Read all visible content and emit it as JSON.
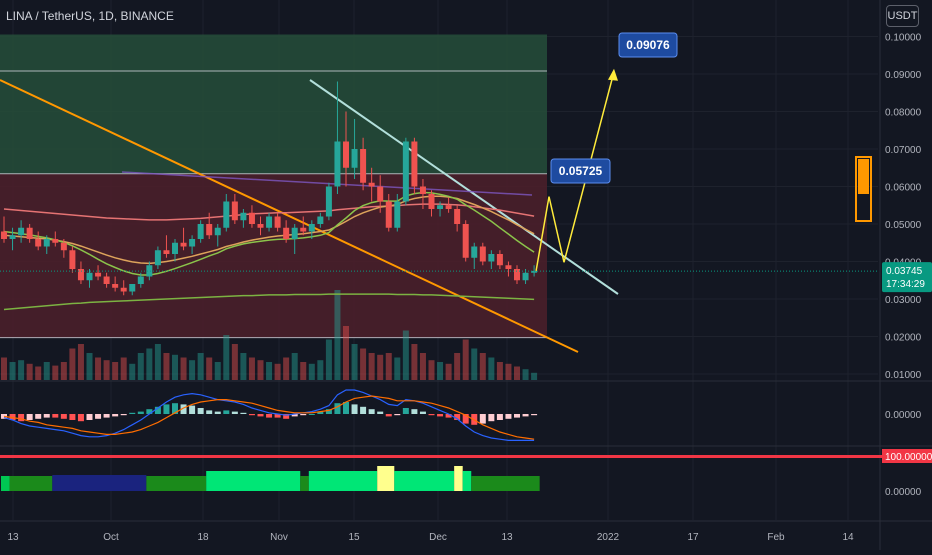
{
  "header": {
    "title": "LINA / TetherUS, 1D, BINANCE",
    "currency": "USDT"
  },
  "colors": {
    "background": "#131722",
    "up": "#26a69a",
    "down": "#ef5350",
    "green_zone": "#264d3a",
    "red_zone": "#4a1f2a",
    "trendline_white": "#b2dfdb",
    "trendline_orange": "#ff9800",
    "projection": "#ffeb3b",
    "label_bg": "#1e4ba0",
    "price_tag": "#089981",
    "rsi_line": "#f23645"
  },
  "chart_data": {
    "type": "candlestick",
    "symbol": "LINA / TetherUS",
    "interval": "1D",
    "exchange": "BINANCE",
    "y_axis": {
      "ticks": [
        "0.10000",
        "0.09000",
        "0.08000",
        "0.07000",
        "0.06000",
        "0.05000",
        "0.04000",
        "0.03000",
        "0.02000",
        "0.01000"
      ],
      "range": [
        0.01,
        0.1
      ]
    },
    "x_axis": {
      "ticks": [
        "13",
        "Oct",
        "18",
        "Nov",
        "15",
        "Dec",
        "13",
        "2022",
        "17",
        "Feb",
        "14"
      ]
    },
    "last_price": "0.03745",
    "countdown": "17:34:29",
    "annotations": [
      {
        "label": "0.09076",
        "value": 0.09076
      },
      {
        "label": "0.05725",
        "value": 0.05725
      }
    ],
    "zones": [
      {
        "name": "green-target-zone",
        "top": 0.1,
        "bottom": 0.0634
      },
      {
        "name": "red-range-zone",
        "top": 0.0634,
        "bottom": 0.0197
      }
    ],
    "levels": [
      0.0908,
      0.0634,
      0.0197
    ],
    "ohlc": [
      [
        0.048,
        0.052,
        0.045,
        0.046
      ],
      [
        0.046,
        0.049,
        0.043,
        0.047
      ],
      [
        0.047,
        0.051,
        0.045,
        0.049
      ],
      [
        0.049,
        0.05,
        0.045,
        0.046
      ],
      [
        0.046,
        0.048,
        0.043,
        0.044
      ],
      [
        0.044,
        0.047,
        0.042,
        0.046
      ],
      [
        0.046,
        0.048,
        0.044,
        0.045
      ],
      [
        0.045,
        0.046,
        0.041,
        0.043
      ],
      [
        0.043,
        0.044,
        0.037,
        0.038
      ],
      [
        0.038,
        0.04,
        0.034,
        0.035
      ],
      [
        0.035,
        0.038,
        0.033,
        0.037
      ],
      [
        0.037,
        0.039,
        0.035,
        0.036
      ],
      [
        0.036,
        0.037,
        0.033,
        0.034
      ],
      [
        0.034,
        0.036,
        0.032,
        0.033
      ],
      [
        0.033,
        0.035,
        0.031,
        0.032
      ],
      [
        0.032,
        0.034,
        0.031,
        0.034
      ],
      [
        0.034,
        0.037,
        0.033,
        0.036
      ],
      [
        0.036,
        0.04,
        0.035,
        0.039
      ],
      [
        0.039,
        0.044,
        0.038,
        0.043
      ],
      [
        0.043,
        0.047,
        0.041,
        0.042
      ],
      [
        0.042,
        0.046,
        0.04,
        0.045
      ],
      [
        0.045,
        0.049,
        0.043,
        0.044
      ],
      [
        0.044,
        0.047,
        0.042,
        0.046
      ],
      [
        0.046,
        0.051,
        0.045,
        0.05
      ],
      [
        0.05,
        0.053,
        0.046,
        0.047
      ],
      [
        0.047,
        0.05,
        0.044,
        0.049
      ],
      [
        0.049,
        0.058,
        0.048,
        0.056
      ],
      [
        0.056,
        0.058,
        0.05,
        0.051
      ],
      [
        0.051,
        0.054,
        0.049,
        0.053
      ],
      [
        0.053,
        0.055,
        0.049,
        0.05
      ],
      [
        0.05,
        0.052,
        0.047,
        0.049
      ],
      [
        0.049,
        0.053,
        0.048,
        0.052
      ],
      [
        0.052,
        0.053,
        0.048,
        0.049
      ],
      [
        0.049,
        0.051,
        0.045,
        0.046
      ],
      [
        0.046,
        0.05,
        0.042,
        0.049
      ],
      [
        0.049,
        0.052,
        0.047,
        0.048
      ],
      [
        0.048,
        0.051,
        0.046,
        0.05
      ],
      [
        0.05,
        0.053,
        0.049,
        0.052
      ],
      [
        0.052,
        0.061,
        0.051,
        0.06
      ],
      [
        0.06,
        0.088,
        0.058,
        0.072
      ],
      [
        0.072,
        0.08,
        0.06,
        0.065
      ],
      [
        0.065,
        0.078,
        0.062,
        0.07
      ],
      [
        0.07,
        0.073,
        0.059,
        0.061
      ],
      [
        0.061,
        0.065,
        0.056,
        0.06
      ],
      [
        0.06,
        0.063,
        0.053,
        0.056
      ],
      [
        0.056,
        0.058,
        0.048,
        0.049
      ],
      [
        0.049,
        0.058,
        0.048,
        0.056
      ],
      [
        0.056,
        0.073,
        0.055,
        0.072
      ],
      [
        0.072,
        0.073,
        0.058,
        0.06
      ],
      [
        0.06,
        0.062,
        0.054,
        0.058
      ],
      [
        0.058,
        0.059,
        0.052,
        0.054
      ],
      [
        0.054,
        0.056,
        0.052,
        0.055
      ],
      [
        0.055,
        0.057,
        0.053,
        0.054
      ],
      [
        0.054,
        0.055,
        0.048,
        0.05
      ],
      [
        0.05,
        0.051,
        0.04,
        0.041
      ],
      [
        0.041,
        0.045,
        0.038,
        0.044
      ],
      [
        0.044,
        0.045,
        0.039,
        0.04
      ],
      [
        0.04,
        0.043,
        0.038,
        0.042
      ],
      [
        0.042,
        0.043,
        0.038,
        0.039
      ],
      [
        0.039,
        0.04,
        0.036,
        0.038
      ],
      [
        0.038,
        0.039,
        0.034,
        0.035
      ],
      [
        0.035,
        0.038,
        0.034,
        0.037
      ],
      [
        0.037,
        0.039,
        0.036,
        0.0375
      ]
    ],
    "moving_averages": [
      {
        "name": "ma-slow",
        "color": "#7cb342",
        "values": [
          0.0272,
          0.0274,
          0.0276,
          0.0278,
          0.028,
          0.0282,
          0.0284,
          0.0286,
          0.0288,
          0.0289,
          0.0291,
          0.0292,
          0.0293,
          0.0294,
          0.0295,
          0.0296,
          0.0297,
          0.0298,
          0.0299,
          0.03,
          0.0301,
          0.0302,
          0.0303,
          0.0304,
          0.0305,
          0.0306,
          0.0307,
          0.0308,
          0.0309,
          0.0309,
          0.031,
          0.0311,
          0.0311,
          0.0311,
          0.0312,
          0.0312,
          0.0312,
          0.0312,
          0.0313,
          0.0313,
          0.0313,
          0.0313,
          0.0313,
          0.0313,
          0.0313,
          0.0313,
          0.0312,
          0.0312,
          0.0312,
          0.0311,
          0.0311,
          0.031,
          0.0309,
          0.0308,
          0.0307,
          0.0306,
          0.0305,
          0.0304,
          0.0303,
          0.0302,
          0.0301,
          0.03,
          0.0299
        ]
      },
      {
        "name": "ma-mid",
        "color": "#e57373",
        "values": [
          0.054,
          0.0538,
          0.0536,
          0.0534,
          0.0532,
          0.053,
          0.0528,
          0.0526,
          0.0524,
          0.0522,
          0.052,
          0.0518,
          0.0516,
          0.0515,
          0.0514,
          0.0513,
          0.0512,
          0.0511,
          0.0511,
          0.0511,
          0.0512,
          0.0513,
          0.0514,
          0.0515,
          0.0517,
          0.0519,
          0.0521,
          0.0523,
          0.0525,
          0.0527,
          0.0528,
          0.0529,
          0.053,
          0.053,
          0.0531,
          0.0532,
          0.0533,
          0.0534,
          0.0535,
          0.0538,
          0.054,
          0.0542,
          0.0544,
          0.0546,
          0.0547,
          0.0548,
          0.0549,
          0.0551,
          0.0552,
          0.0553,
          0.0553,
          0.0553,
          0.0552,
          0.0551,
          0.0549,
          0.0546,
          0.0543,
          0.054,
          0.0537,
          0.0533,
          0.0529,
          0.0525,
          0.0521
        ]
      },
      {
        "name": "ma-fast",
        "color": "#dda35b",
        "values": [
          0.047,
          0.0468,
          0.0466,
          0.0464,
          0.0462,
          0.046,
          0.0457,
          0.0453,
          0.0448,
          0.0441,
          0.0433,
          0.0425,
          0.0417,
          0.041,
          0.0404,
          0.0399,
          0.0396,
          0.0395,
          0.0397,
          0.04,
          0.0404,
          0.0409,
          0.0414,
          0.042,
          0.0426,
          0.0432,
          0.044,
          0.0446,
          0.0452,
          0.0457,
          0.0461,
          0.0465,
          0.0468,
          0.047,
          0.0472,
          0.0474,
          0.0477,
          0.048,
          0.0484,
          0.0495,
          0.0507,
          0.052,
          0.053,
          0.0538,
          0.0545,
          0.0548,
          0.0552,
          0.0562,
          0.0568,
          0.0572,
          0.0574,
          0.0574,
          0.0572,
          0.0568,
          0.056,
          0.0552,
          0.0543,
          0.0533,
          0.0522,
          0.0511,
          0.0498,
          0.0486,
          0.0474
        ]
      },
      {
        "name": "ma-green",
        "color": "#8bc34a",
        "values": [
          0.048,
          0.0477,
          0.0474,
          0.0471,
          0.0467,
          0.0463,
          0.0458,
          0.0451,
          0.0442,
          0.0431,
          0.0419,
          0.0406,
          0.0394,
          0.0384,
          0.0375,
          0.0368,
          0.0364,
          0.0364,
          0.0368,
          0.0374,
          0.0381,
          0.0389,
          0.0397,
          0.0406,
          0.0415,
          0.0423,
          0.0434,
          0.0441,
          0.0447,
          0.0451,
          0.0454,
          0.0457,
          0.0459,
          0.046,
          0.0461,
          0.0463,
          0.0466,
          0.047,
          0.0477,
          0.0498,
          0.0516,
          0.0536,
          0.0549,
          0.0557,
          0.0562,
          0.0561,
          0.0561,
          0.0575,
          0.0581,
          0.0584,
          0.0583,
          0.0579,
          0.0574,
          0.0566,
          0.0551,
          0.0537,
          0.0522,
          0.0507,
          0.049,
          0.0473,
          0.0456,
          0.044,
          0.0425
        ]
      }
    ],
    "volume": [
      0.25,
      0.2,
      0.22,
      0.18,
      0.15,
      0.2,
      0.16,
      0.2,
      0.35,
      0.4,
      0.3,
      0.25,
      0.22,
      0.2,
      0.25,
      0.18,
      0.3,
      0.35,
      0.4,
      0.3,
      0.28,
      0.25,
      0.22,
      0.3,
      0.25,
      0.2,
      0.5,
      0.4,
      0.3,
      0.25,
      0.22,
      0.2,
      0.18,
      0.25,
      0.3,
      0.2,
      0.18,
      0.22,
      0.45,
      1.0,
      0.6,
      0.4,
      0.35,
      0.3,
      0.28,
      0.3,
      0.25,
      0.55,
      0.4,
      0.3,
      0.22,
      0.2,
      0.18,
      0.3,
      0.45,
      0.35,
      0.3,
      0.25,
      0.2,
      0.18,
      0.15,
      0.12,
      0.08
    ],
    "macd": {
      "ticks": [
        "0.00000"
      ],
      "histogram": [
        -0.4,
        -0.5,
        -0.6,
        -0.5,
        -0.4,
        -0.3,
        -0.3,
        -0.4,
        -0.5,
        -0.6,
        -0.5,
        -0.4,
        -0.3,
        -0.2,
        -0.1,
        0.1,
        0.2,
        0.4,
        0.6,
        0.8,
        0.9,
        0.8,
        0.7,
        0.5,
        0.3,
        0.2,
        0.3,
        0.2,
        0.1,
        -0.1,
        -0.2,
        -0.3,
        -0.3,
        -0.4,
        -0.2,
        -0.1,
        0.0,
        0.2,
        0.4,
        0.9,
        1.0,
        0.8,
        0.6,
        0.4,
        0.2,
        -0.2,
        -0.1,
        0.5,
        0.4,
        0.2,
        -0.1,
        -0.2,
        -0.3,
        -0.5,
        -0.8,
        -0.9,
        -0.8,
        -0.6,
        -0.5,
        -0.4,
        -0.3,
        -0.2,
        -0.1
      ],
      "macd_line": [
        -0.3,
        -0.5,
        -0.8,
        -1.0,
        -1.1,
        -1.2,
        -1.3,
        -1.4,
        -1.6,
        -1.8,
        -1.9,
        -1.9,
        -1.8,
        -1.6,
        -1.3,
        -0.9,
        -0.5,
        0.0,
        0.5,
        1.0,
        1.4,
        1.6,
        1.7,
        1.6,
        1.4,
        1.2,
        1.1,
        1.0,
        0.8,
        0.5,
        0.3,
        0.1,
        0.0,
        -0.1,
        0.0,
        0.1,
        0.2,
        0.4,
        0.7,
        1.6,
        2.0,
        2.0,
        1.8,
        1.5,
        1.2,
        0.8,
        0.7,
        1.2,
        1.1,
        0.9,
        0.6,
        0.3,
        0.0,
        -0.4,
        -1.0,
        -1.5,
        -1.8,
        -2.0,
        -2.1,
        -2.2,
        -2.2,
        -2.2,
        -2.2
      ],
      "signal_line": [
        -0.2,
        -0.3,
        -0.4,
        -0.6,
        -0.7,
        -0.9,
        -1.0,
        -1.1,
        -1.2,
        -1.4,
        -1.5,
        -1.6,
        -1.7,
        -1.7,
        -1.6,
        -1.5,
        -1.3,
        -1.0,
        -0.7,
        -0.3,
        0.1,
        0.5,
        0.8,
        1.0,
        1.1,
        1.2,
        1.2,
        1.1,
        1.0,
        0.9,
        0.7,
        0.5,
        0.3,
        0.2,
        0.1,
        0.1,
        0.1,
        0.2,
        0.3,
        0.6,
        1.0,
        1.3,
        1.4,
        1.5,
        1.4,
        1.3,
        1.1,
        1.1,
        1.1,
        1.0,
        0.9,
        0.7,
        0.5,
        0.2,
        -0.1,
        -0.5,
        -0.9,
        -1.2,
        -1.5,
        -1.7,
        -1.9,
        -2.0,
        -2.1
      ]
    },
    "oscillator": {
      "ticks": [
        "100.00000",
        "0.00000"
      ],
      "level_value": 100,
      "bands": [
        {
          "from": 0,
          "to": 1,
          "color": "#00c853"
        },
        {
          "from": 1,
          "to": 6,
          "color": "#1b8a1b"
        },
        {
          "from": 6,
          "to": 17,
          "color": "#1a237e"
        },
        {
          "from": 17,
          "to": 24,
          "color": "#1b8a1b"
        },
        {
          "from": 24,
          "to": 35,
          "color": "#00e676"
        },
        {
          "from": 35,
          "to": 36,
          "color": "#1b8a1b"
        },
        {
          "from": 36,
          "to": 44,
          "color": "#00e676"
        },
        {
          "from": 44,
          "to": 46,
          "color": "#ffff8d"
        },
        {
          "from": 46,
          "to": 53,
          "color": "#00e676"
        },
        {
          "from": 53,
          "to": 54,
          "color": "#ffff8d"
        },
        {
          "from": 54,
          "to": 55,
          "color": "#00e676"
        },
        {
          "from": 55,
          "to": 63,
          "color": "#1b8a1b"
        }
      ]
    }
  }
}
